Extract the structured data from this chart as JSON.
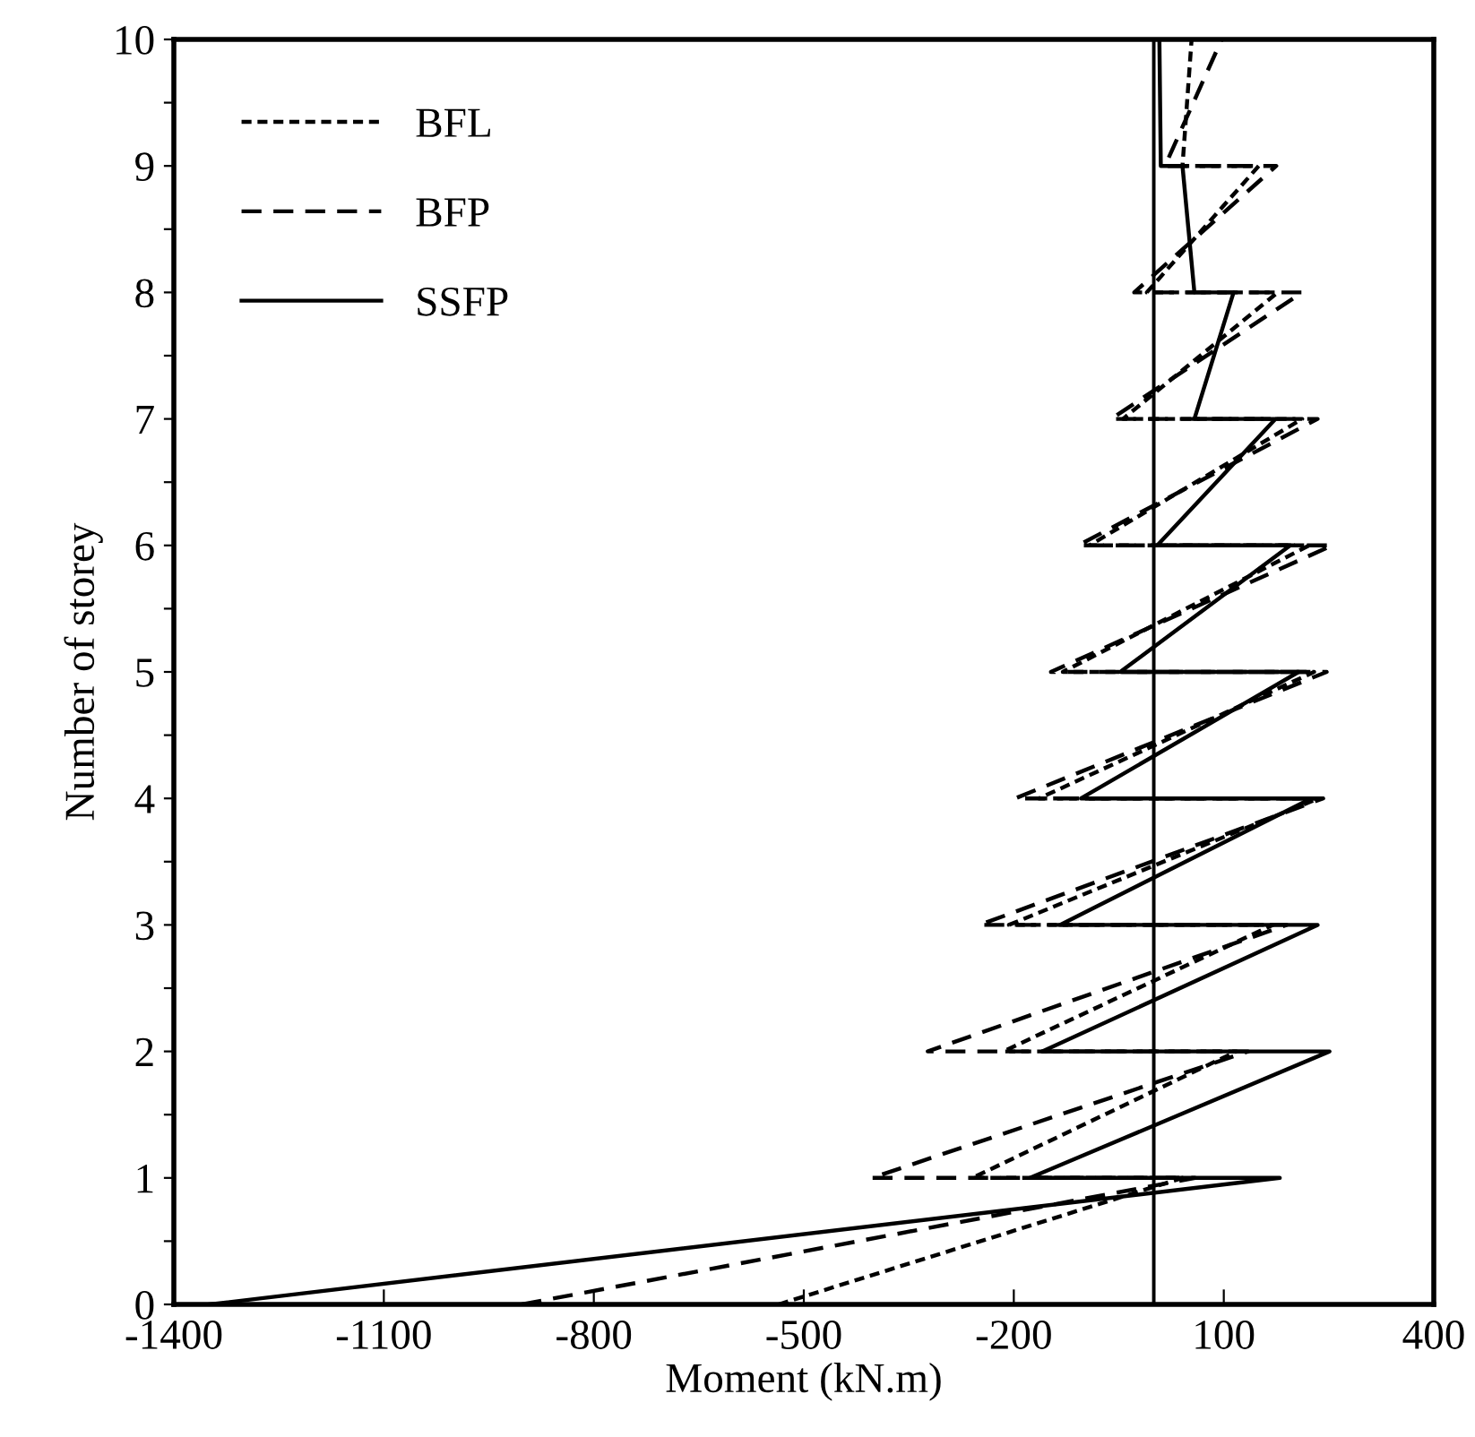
{
  "chart_data": {
    "type": "line",
    "xlabel": "Moment (kN.m)",
    "ylabel": "Number of storey",
    "xlim": [
      -1400,
      400
    ],
    "xticks": [
      -1400,
      -1100,
      -800,
      -500,
      -200,
      100,
      400
    ],
    "ylim": [
      0,
      10
    ],
    "yticks": [
      0,
      {
        "value": 0.5,
        "label": null
      },
      1,
      {
        "value": 1.5,
        "label": null
      },
      2,
      {
        "value": 2.5,
        "label": null
      },
      3,
      {
        "value": 3.5,
        "label": null
      },
      4,
      {
        "value": 4.5,
        "label": null
      },
      5,
      {
        "value": 5.5,
        "label": null
      },
      6,
      {
        "value": 6.5,
        "label": null
      },
      7,
      {
        "value": 7.5,
        "label": null
      },
      8,
      {
        "value": 8.5,
        "label": null
      },
      9,
      {
        "value": 9.5,
        "label": null
      },
      10
    ],
    "grid": false,
    "legend": "top left",
    "marker": "none",
    "ref_lines": [
      {
        "axis": "x",
        "value": 0,
        "color": "#000000",
        "line_style": "solid"
      }
    ],
    "series": [
      {
        "name": "BFL",
        "color": "#000000",
        "line_style": "dotted",
        "x": [
          -536,
          41,
          -259,
          118,
          -215,
          170,
          -207,
          235,
          -164,
          229,
          -130,
          222,
          -92,
          212,
          -44,
          177,
          -10,
          150,
          41,
          54
        ],
        "values": [
          0,
          1,
          1,
          2,
          2,
          3,
          3,
          4,
          4,
          5,
          5,
          6,
          6,
          7,
          7,
          8,
          8,
          9,
          9,
          10
        ]
      },
      {
        "name": "BFP",
        "color": "#000000",
        "line_style": "dashed",
        "x": [
          -903,
          59,
          -403,
          135,
          -323,
          190,
          -249,
          242,
          -198,
          247,
          -147,
          255,
          -108,
          234,
          -61,
          212,
          -28,
          175,
          16,
          97
        ],
        "values": [
          0,
          1,
          1,
          2,
          2,
          3,
          3,
          4,
          4,
          5,
          5,
          6,
          6,
          7,
          7,
          8,
          8,
          9,
          9,
          10
        ]
      },
      {
        "name": "SSFP",
        "color": "#000000",
        "line_style": "solid",
        "x": [
          -1349,
          180,
          -177,
          251,
          -159,
          234,
          -134,
          225,
          -104,
          207,
          -48,
          195,
          5,
          174,
          58,
          114,
          58,
          41,
          10,
          8
        ],
        "values": [
          0,
          1,
          1,
          2,
          2,
          3,
          3,
          4,
          4,
          5,
          5,
          6,
          6,
          7,
          7,
          8,
          8,
          9,
          9,
          10
        ]
      }
    ]
  }
}
